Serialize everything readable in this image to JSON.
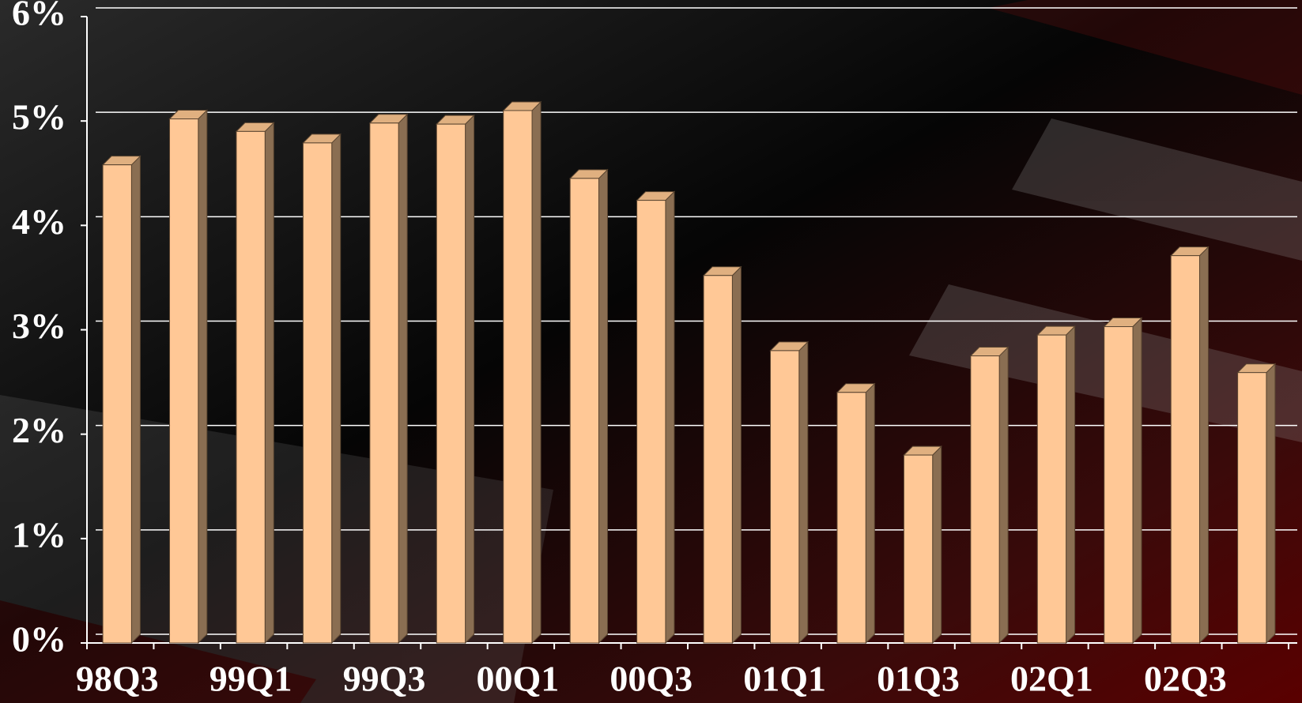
{
  "chart_data": {
    "type": "bar",
    "categories": [
      "98Q3",
      null,
      "99Q1",
      null,
      "99Q3",
      null,
      "00Q1",
      null,
      "00Q3",
      null,
      "01Q1",
      null,
      "01Q3",
      null,
      "02Q1",
      null,
      "02Q3",
      null
    ],
    "values": [
      4.58,
      5.02,
      4.9,
      4.79,
      4.98,
      4.97,
      5.1,
      4.45,
      4.24,
      3.52,
      2.8,
      2.4,
      1.8,
      2.75,
      2.95,
      3.03,
      3.71,
      2.59
    ],
    "color": "#ffc896",
    "ylim": [
      0,
      6
    ],
    "yticks": [
      {
        "value": 0,
        "label": "0%"
      },
      {
        "value": 1,
        "label": "1%"
      },
      {
        "value": 2,
        "label": "2%"
      },
      {
        "value": 3,
        "label": "3%"
      },
      {
        "value": 4,
        "label": "4%"
      },
      {
        "value": 5,
        "label": "5%"
      },
      {
        "value": 6,
        "label": "6%"
      }
    ],
    "grid": true
  }
}
